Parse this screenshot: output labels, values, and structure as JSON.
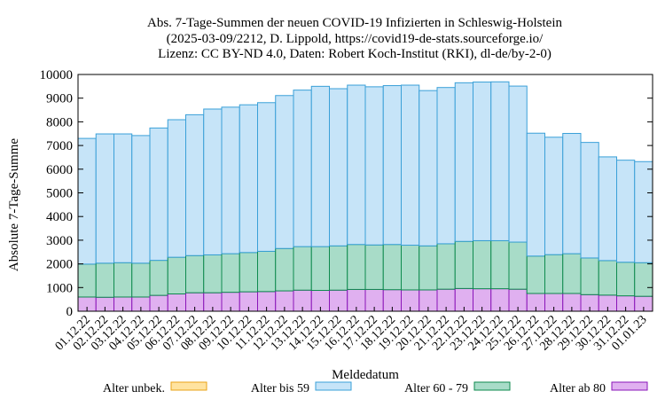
{
  "chart_data": {
    "type": "bar",
    "stacked": true,
    "title": [
      "Abs. 7-Tage-Summen der neuen COVID-19 Infizierten in Schleswig-Holstein",
      "(2025-03-09/2212, D. Lippold, https://covid19-de-stats.sourceforge.io/",
      "Lizenz: CC BY-ND 4.0, Daten: Robert Koch-Institut (RKI), dl-de/by-2-0)"
    ],
    "xlabel": "Meldedatum",
    "ylabel": "Absolute 7-Tage-Summe",
    "ylim": [
      0,
      10000
    ],
    "yticks": [
      0,
      1000,
      2000,
      3000,
      4000,
      5000,
      6000,
      7000,
      8000,
      9000,
      10000
    ],
    "grid": false,
    "legend_position": "bottom",
    "categories": [
      "01.12.22",
      "02.12.22",
      "03.12.22",
      "04.12.22",
      "05.12.22",
      "06.12.22",
      "07.12.22",
      "08.12.22",
      "09.12.22",
      "10.12.22",
      "11.12.22",
      "12.12.22",
      "13.12.22",
      "14.12.22",
      "15.12.22",
      "16.12.22",
      "17.12.22",
      "18.12.22",
      "19.12.22",
      "20.12.22",
      "21.12.22",
      "22.12.22",
      "23.12.22",
      "24.12.22",
      "25.12.22",
      "26.12.22",
      "27.12.22",
      "28.12.22",
      "29.12.22",
      "30.12.22",
      "31.12.22",
      "01.01.23"
    ],
    "series": [
      {
        "name": "Alter unbek.",
        "color": "#ffe3a0",
        "stroke": "#e8a317",
        "values": [
          0,
          0,
          0,
          0,
          0,
          0,
          0,
          0,
          0,
          0,
          0,
          0,
          0,
          0,
          0,
          0,
          0,
          0,
          0,
          0,
          0,
          0,
          0,
          0,
          0,
          0,
          0,
          0,
          0,
          0,
          0,
          0
        ]
      },
      {
        "name": "Alter ab 80",
        "color": "#e0b0f0",
        "stroke": "#8a14b8",
        "values": [
          600,
          590,
          600,
          600,
          670,
          730,
          780,
          780,
          800,
          820,
          830,
          860,
          890,
          880,
          890,
          920,
          920,
          910,
          900,
          900,
          930,
          960,
          950,
          950,
          930,
          750,
          750,
          750,
          700,
          680,
          650,
          630
        ]
      },
      {
        "name": "Alter 60 - 79",
        "color": "#a8dcc8",
        "stroke": "#0e8a4e",
        "values": [
          1390,
          1440,
          1450,
          1430,
          1480,
          1550,
          1570,
          1600,
          1630,
          1660,
          1700,
          1790,
          1840,
          1850,
          1870,
          1900,
          1880,
          1910,
          1890,
          1860,
          1920,
          1990,
          2030,
          2030,
          1990,
          1580,
          1640,
          1680,
          1550,
          1460,
          1420,
          1420
        ]
      },
      {
        "name": "Alter bis 59",
        "color": "#c6e4f8",
        "stroke": "#3aa0d8",
        "values": [
          5310,
          5460,
          5440,
          5390,
          5590,
          5810,
          5950,
          6160,
          6190,
          6240,
          6280,
          6460,
          6610,
          6770,
          6640,
          6730,
          6680,
          6710,
          6760,
          6560,
          6600,
          6700,
          6700,
          6710,
          6590,
          5190,
          4960,
          5080,
          4880,
          4380,
          4310,
          4270
        ]
      }
    ],
    "legend_order": [
      "Alter unbek.",
      "Alter bis 59",
      "Alter 60 - 79",
      "Alter ab 80"
    ]
  }
}
